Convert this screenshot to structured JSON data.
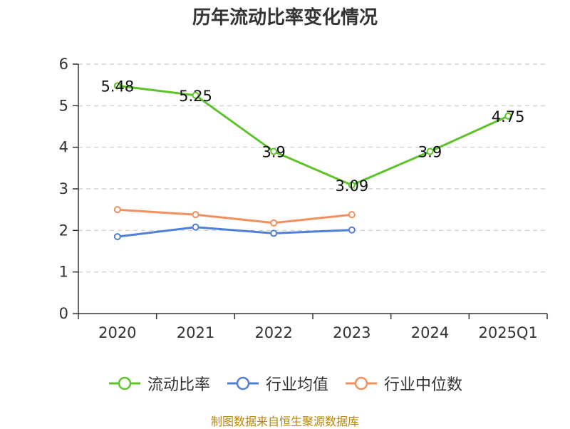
{
  "title": "历年流动比率变化情况",
  "source": "制图数据来自恒生聚源数据库",
  "chart_data": {
    "type": "line",
    "title": "历年流动比率变化情况",
    "categories": [
      "2020",
      "2021",
      "2022",
      "2023",
      "2024",
      "2025Q1"
    ],
    "ylim": [
      0,
      6
    ],
    "yticks": [
      0,
      1,
      2,
      3,
      4,
      5,
      6
    ],
    "grid": true,
    "legend_position": "bottom",
    "series": [
      {
        "name": "流动比率",
        "color": "#5ec32a",
        "values": [
          5.48,
          5.25,
          3.9,
          3.09,
          3.9,
          4.75
        ],
        "labels": [
          "5.48",
          "5.25",
          "3.9",
          "3.09",
          "3.9",
          "4.75"
        ]
      },
      {
        "name": "行业均值",
        "color": "#4f7fd6",
        "values": [
          1.85,
          2.08,
          1.93,
          2.01,
          null,
          null
        ]
      },
      {
        "name": "行业中位数",
        "color": "#f4905e",
        "values": [
          2.5,
          2.38,
          2.18,
          2.38,
          null,
          null
        ]
      }
    ]
  }
}
